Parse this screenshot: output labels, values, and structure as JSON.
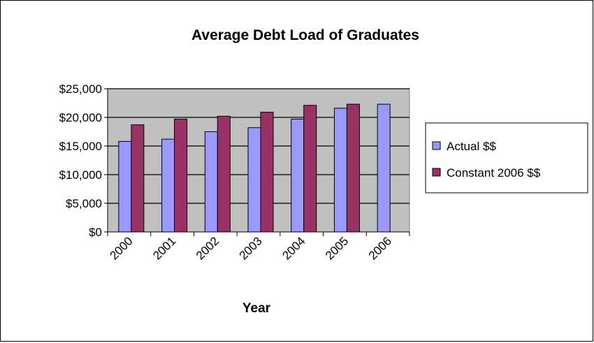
{
  "chart_data": {
    "type": "bar",
    "title": "Average Debt Load of Graduates",
    "xlabel": "Year",
    "ylabel": "",
    "categories": [
      "2000",
      "2001",
      "2002",
      "2003",
      "2004",
      "2005",
      "2006"
    ],
    "series": [
      {
        "name": "Actual $$",
        "values": [
          15800,
          16200,
          17500,
          18200,
          19700,
          21600,
          22300
        ],
        "color": "#9999ff"
      },
      {
        "name": "Constant 2006 $$",
        "values": [
          18700,
          19700,
          20200,
          20900,
          22100,
          22300,
          null
        ],
        "color": "#993366"
      }
    ],
    "ylim": [
      0,
      25000
    ],
    "yticks": [
      "$0",
      "$5,000",
      "$10,000",
      "$15,000",
      "$20,000",
      "$25,000"
    ],
    "ytick_values": [
      0,
      5000,
      10000,
      15000,
      20000,
      25000
    ],
    "grid": true,
    "plot_background": "#c0c0c0",
    "legend_position": "right"
  }
}
